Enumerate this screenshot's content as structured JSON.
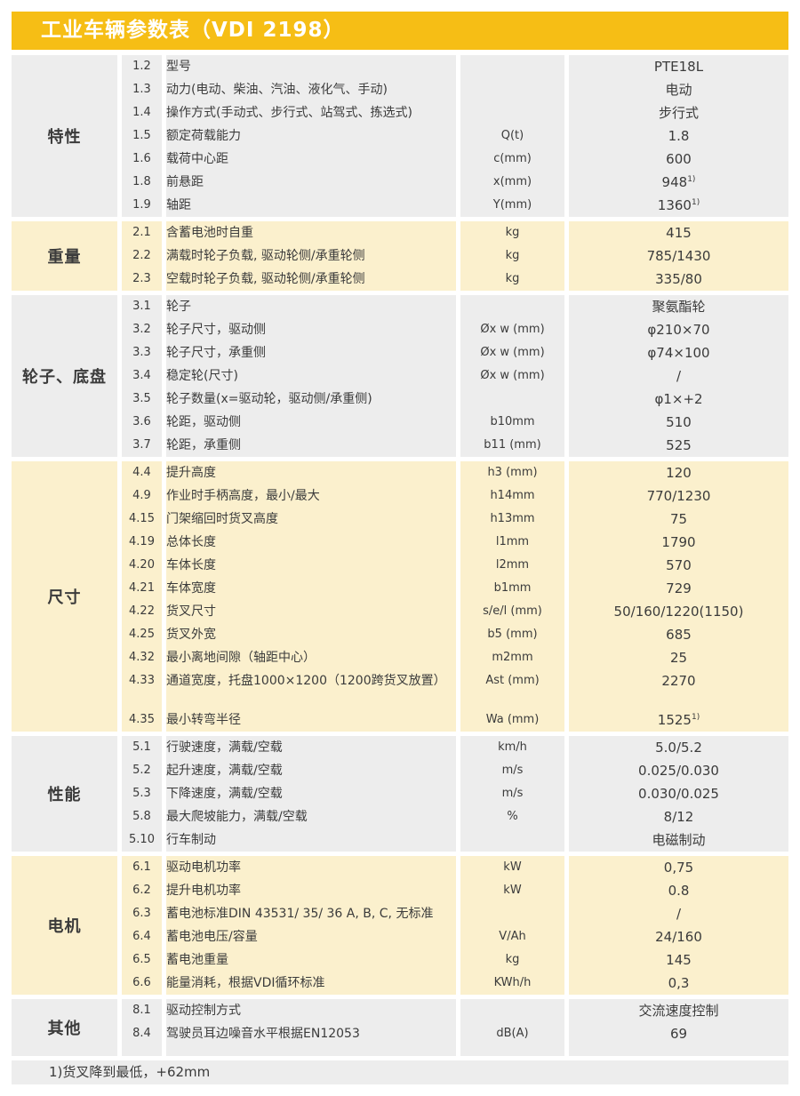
{
  "page": {
    "title": "工业车辆参数表（VDI 2198）",
    "footnote": "1)货叉降到最低，+62mm"
  },
  "colors": {
    "header_yellow": "#F6BE15",
    "section_grey": "#EDEDED",
    "section_cream": "#FBF0CD",
    "title_text": "#FFFFFF",
    "body_text": "#3B3B3B"
  },
  "sections": [
    {
      "label": "特性",
      "tone": "grey",
      "rows": [
        {
          "no": "1.2",
          "desc": "型号",
          "unit": "",
          "value": "PTE18L"
        },
        {
          "no": "1.3",
          "desc": "动力(电动、柴油、汽油、液化气、手动)",
          "unit": "",
          "value": "电动"
        },
        {
          "no": "1.4",
          "desc": "操作方式(手动式、步行式、站驾式、拣选式)",
          "unit": "",
          "value": "步行式"
        },
        {
          "no": "1.5",
          "desc": "额定荷载能力",
          "unit": "Q(t)",
          "value": "1.8"
        },
        {
          "no": "1.6",
          "desc": "载荷中心距",
          "unit": "c(mm)",
          "value": "600"
        },
        {
          "no": "1.8",
          "desc": "前悬距",
          "unit": "x(mm)",
          "value": "948",
          "sup": "1)"
        },
        {
          "no": "1.9",
          "desc": "轴距",
          "unit": "Y(mm)",
          "value": "1360",
          "sup": "1)"
        }
      ]
    },
    {
      "label": "重量",
      "tone": "cream",
      "rows": [
        {
          "no": "2.1",
          "desc": "含蓄电池时自重",
          "unit": "kg",
          "value": "415"
        },
        {
          "no": "2.2",
          "desc": "满载时轮子负载, 驱动轮侧/承重轮侧",
          "unit": "kg",
          "value": "785/1430"
        },
        {
          "no": "2.3",
          "desc": "空载时轮子负载, 驱动轮侧/承重轮侧",
          "unit": "kg",
          "value": "335/80"
        }
      ]
    },
    {
      "label": "轮子、底盘",
      "tone": "grey",
      "rows": [
        {
          "no": "3.1",
          "desc": "轮子",
          "unit": "",
          "value": "聚氨酯轮"
        },
        {
          "no": "3.2",
          "desc": "轮子尺寸，驱动侧",
          "unit": "Øx w (mm)",
          "value": "φ210×70"
        },
        {
          "no": "3.3",
          "desc": "轮子尺寸，承重侧",
          "unit": "Øx w (mm)",
          "value": "φ74×100"
        },
        {
          "no": "3.4",
          "desc": "稳定轮(尺寸)",
          "unit": "Øx w (mm)",
          "value": "/"
        },
        {
          "no": "3.5",
          "desc": "轮子数量(x=驱动轮，驱动侧/承重侧)",
          "unit": "",
          "value": "φ1×+2"
        },
        {
          "no": "3.6",
          "desc": "轮距，驱动侧",
          "unit": "b10mm",
          "value": "510"
        },
        {
          "no": "3.7",
          "desc": "轮距，承重侧",
          "unit": "b11 (mm)",
          "value": "525"
        }
      ]
    },
    {
      "label": "尺寸",
      "tone": "cream",
      "rows": [
        {
          "no": "4.4",
          "desc": "提升高度",
          "unit": "h3 (mm)",
          "value": "120"
        },
        {
          "no": "4.9",
          "desc": "作业时手柄高度，最小/最大",
          "unit": "h14mm",
          "value": "770/1230"
        },
        {
          "no": "4.15",
          "desc": "门架缩回时货叉高度",
          "unit": "h13mm",
          "value": "75"
        },
        {
          "no": "4.19",
          "desc": "总体长度",
          "unit": "l1mm",
          "value": "1790"
        },
        {
          "no": "4.20",
          "desc": "车体长度",
          "unit": "l2mm",
          "value": "570"
        },
        {
          "no": "4.21",
          "desc": "车体宽度",
          "unit": "b1mm",
          "value": "729"
        },
        {
          "no": "4.22",
          "desc": "货叉尺寸",
          "unit": "s/e/l (mm)",
          "value": "50/160/1220(1150)"
        },
        {
          "no": "4.25",
          "desc": "货叉外宽",
          "unit": "b5 (mm)",
          "value": "685"
        },
        {
          "no": "4.32",
          "desc": "最小离地间隙（轴距中心）",
          "unit": "m2mm",
          "value": "25"
        },
        {
          "no": "4.33",
          "desc": "通道宽度，托盘1000×1200（1200跨货叉放置）",
          "unit": "Ast (mm)",
          "value": "2270"
        },
        {
          "no": "4.35",
          "desc": "最小转弯半径",
          "unit": "Wa (mm)",
          "value": "1525",
          "sup": "1)",
          "gap_before": true
        }
      ]
    },
    {
      "label": "性能",
      "tone": "grey",
      "rows": [
        {
          "no": "5.1",
          "desc": "行驶速度，满载/空载",
          "unit": "km/h",
          "value": "5.0/5.2"
        },
        {
          "no": "5.2",
          "desc": "起升速度，满载/空载",
          "unit": "m/s",
          "value": "0.025/0.030"
        },
        {
          "no": "5.3",
          "desc": "下降速度，满载/空载",
          "unit": "m/s",
          "value": "0.030/0.025"
        },
        {
          "no": "5.8",
          "desc": "最大爬坡能力，满载/空载",
          "unit": "%",
          "value": "8/12"
        },
        {
          "no": "5.10",
          "desc": "行车制动",
          "unit": "",
          "value": "电磁制动"
        }
      ]
    },
    {
      "label": "电机",
      "tone": "cream",
      "rows": [
        {
          "no": "6.1",
          "desc": "驱动电机功率",
          "unit": "kW",
          "value": "0,75"
        },
        {
          "no": "6.2",
          "desc": "提升电机功率",
          "unit": "kW",
          "value": "0.8"
        },
        {
          "no": "6.3",
          "desc": "蓄电池标准DIN 43531/ 35/ 36 A, B, C, 无标准",
          "unit": "",
          "value": "/"
        },
        {
          "no": "6.4",
          "desc": "蓄电池电压/容量",
          "unit": "V/Ah",
          "value": "24/160"
        },
        {
          "no": "6.5",
          "desc": "蓄电池重量",
          "unit": "kg",
          "value": "145"
        },
        {
          "no": "6.6",
          "desc": "能量消耗，根据VDI循环标准",
          "unit": "KWh/h",
          "value": "0,3"
        }
      ]
    },
    {
      "label": "其他",
      "tone": "grey",
      "extra_bottom": true,
      "rows": [
        {
          "no": "8.1",
          "desc": "驱动控制方式",
          "unit": "",
          "value": "交流速度控制"
        },
        {
          "no": "8.4",
          "desc": "驾驶员耳边噪音水平根据EN12053",
          "unit": "dB(A)",
          "value": "69"
        }
      ]
    }
  ]
}
